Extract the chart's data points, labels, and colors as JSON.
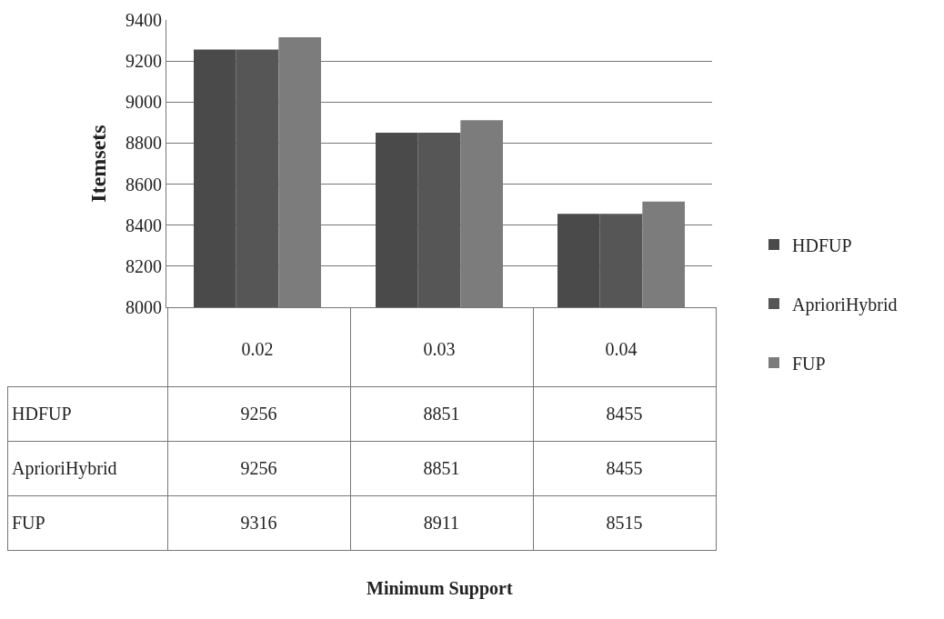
{
  "chart_data": {
    "type": "bar",
    "annotations": [
      "Minimum Support"
    ],
    "ylabel": "Itemsets",
    "categories": [
      "0.02",
      "0.03",
      "0.04"
    ],
    "series": [
      {
        "name": "HDFUP",
        "color": "#4a4a4a",
        "values": [
          9256,
          8851,
          8455
        ]
      },
      {
        "name": "AprioriHybrid",
        "color": "#565656",
        "values": [
          9256,
          8851,
          8455
        ]
      },
      {
        "name": "FUP",
        "color": "#7c7c7c",
        "values": [
          9316,
          8911,
          8515
        ]
      }
    ],
    "ylim": [
      8000,
      9400
    ],
    "yticks": [
      8000,
      8200,
      8400,
      8600,
      8800,
      9000,
      9200,
      9400
    ],
    "grid": "y",
    "legend": "right",
    "data_labels": true
  }
}
